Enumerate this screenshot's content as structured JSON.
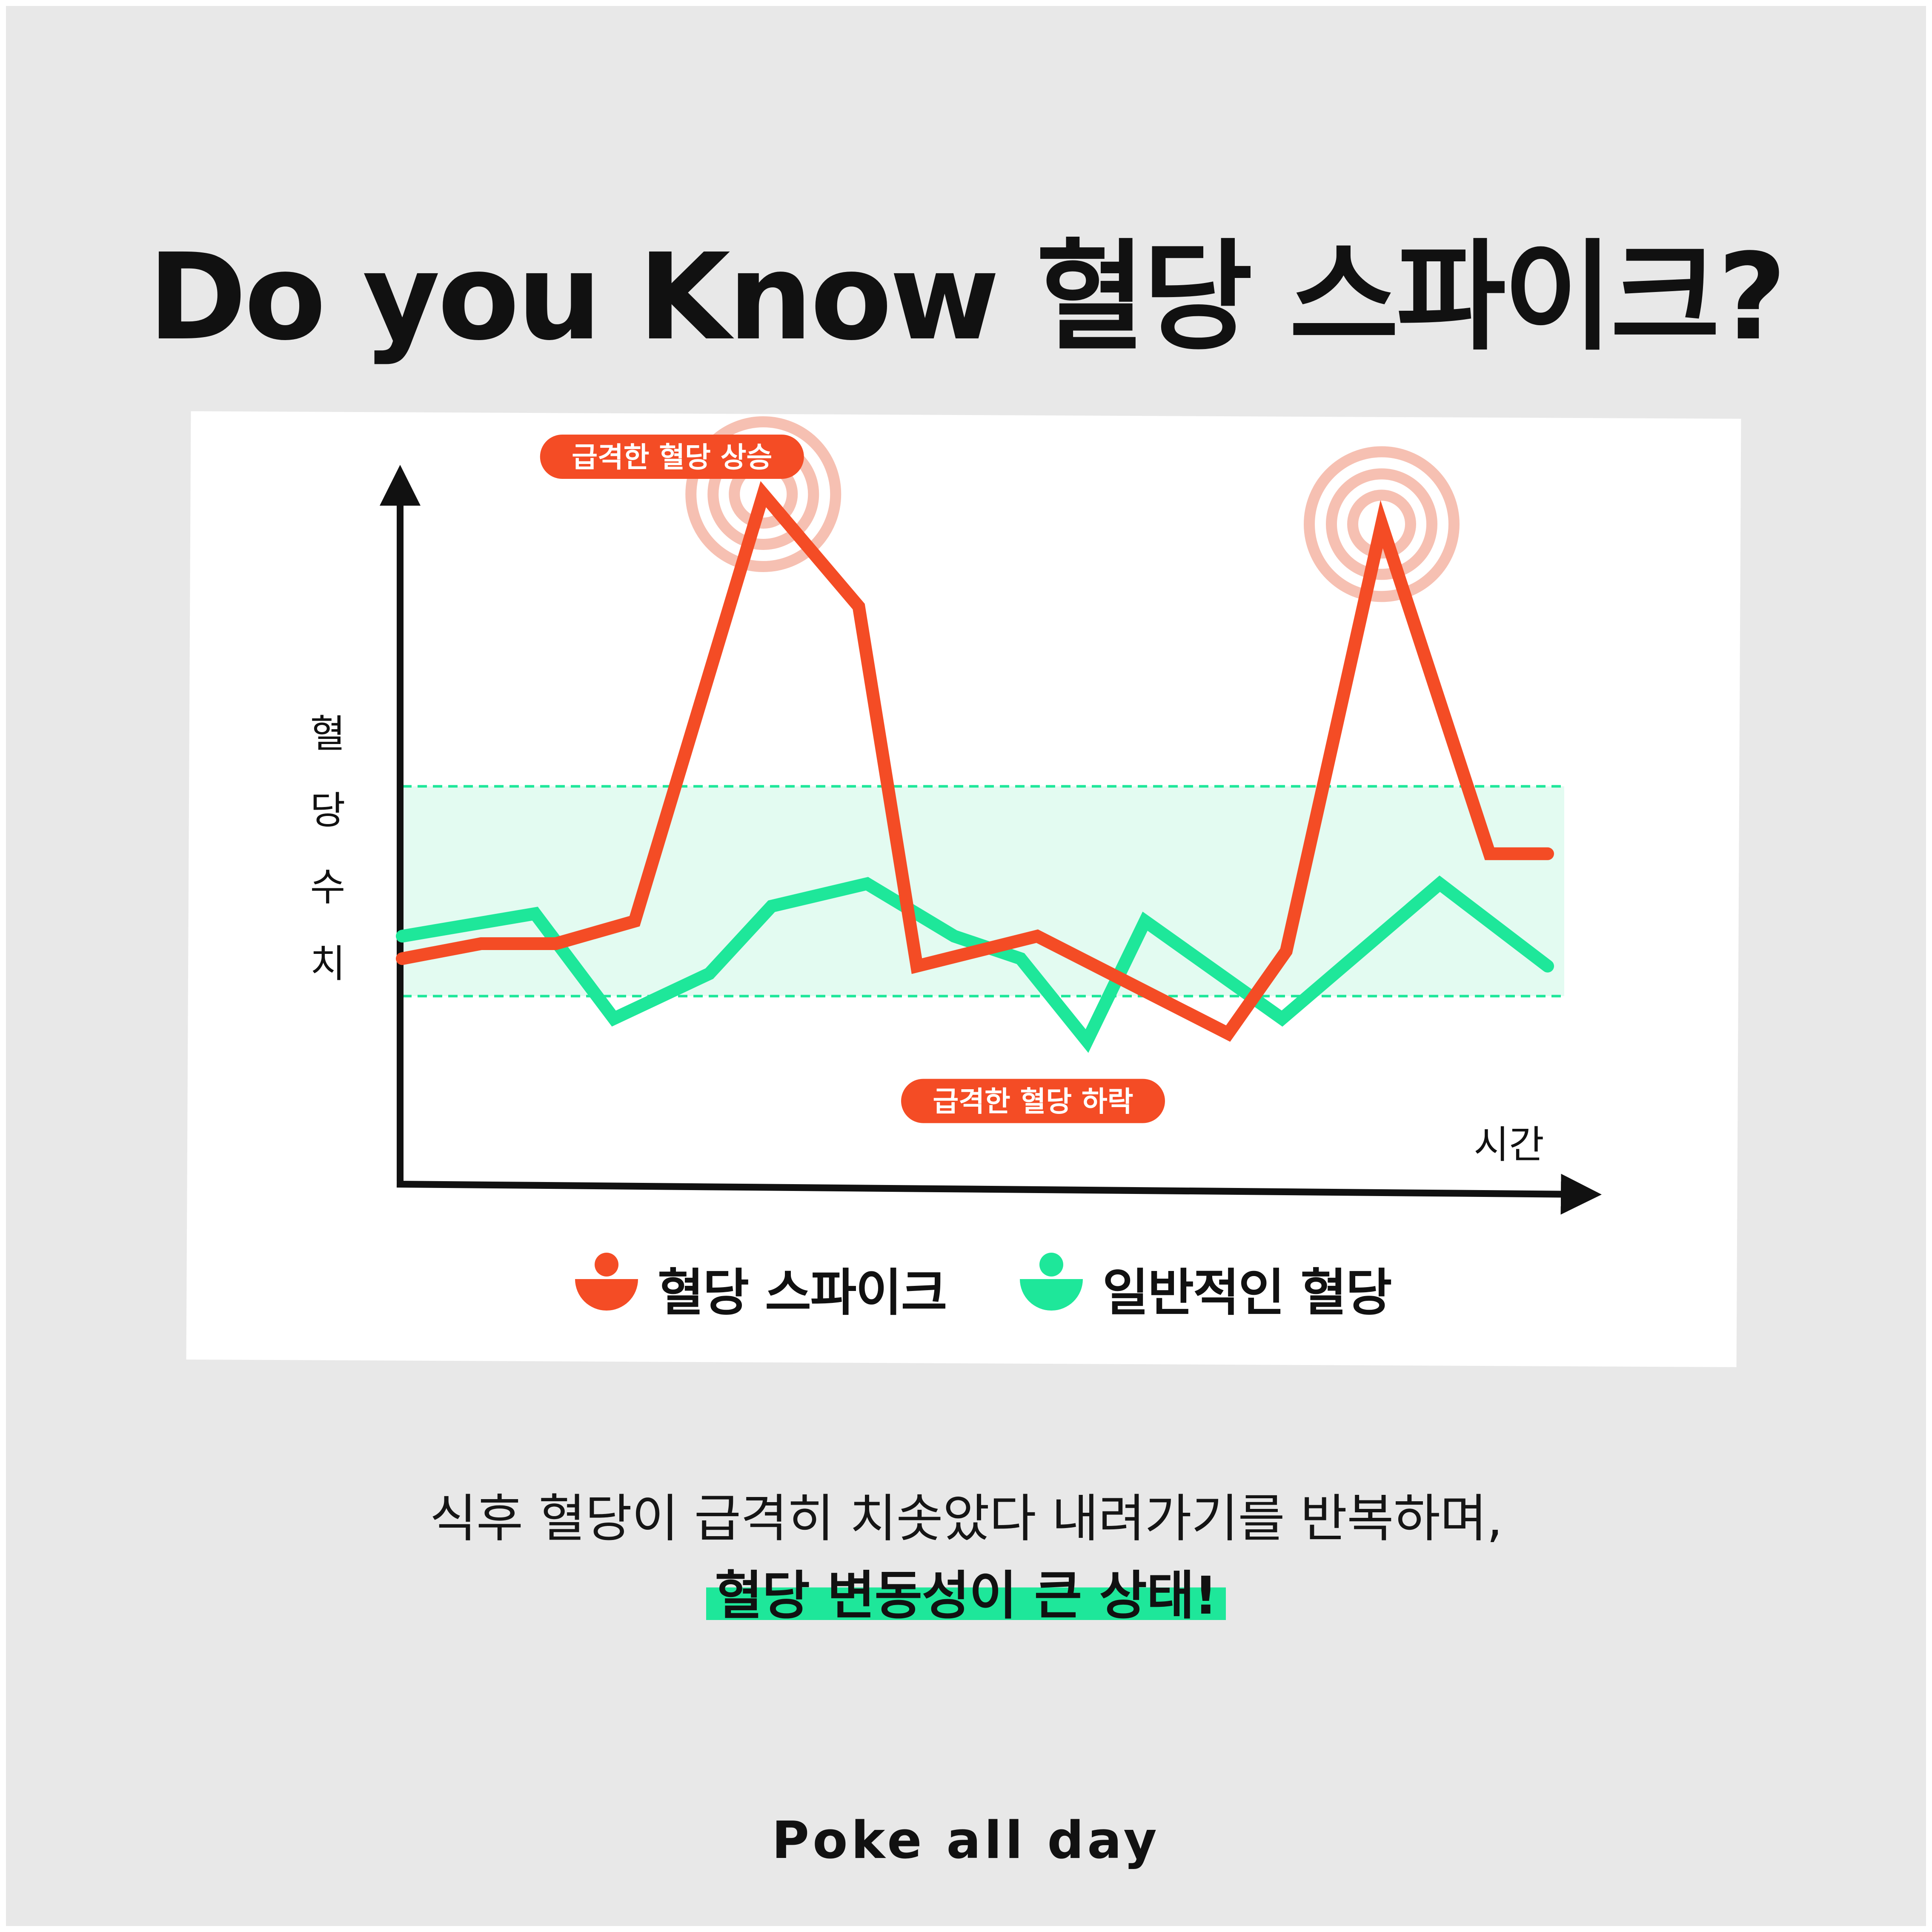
{
  "header": {
    "title": "Do you Know 혈당 스파이크?"
  },
  "colors": {
    "spike": "#f44c25",
    "normal": "#1ee79a",
    "band_fill": "#e3fbf1",
    "band_line": "#1ee79a",
    "ripple": "#f6c0b2",
    "background": "#e8e8e8",
    "panel": "#ffffff"
  },
  "chart_data": {
    "type": "line",
    "xlabel": "시간",
    "ylabel": "혈당 수치",
    "ylim": [
      0,
      100
    ],
    "normal_range": [
      23,
      51
    ],
    "x": [
      0,
      1,
      2,
      3,
      4,
      5,
      6,
      7,
      8,
      9,
      10,
      11,
      12,
      13,
      14,
      15,
      16,
      17,
      18,
      19,
      20,
      21,
      22,
      23,
      24,
      25,
      26,
      27,
      28
    ],
    "series": [
      {
        "name": "혈당 스파이크",
        "icon": "spike-bowl-icon",
        "points": [
          [
            0,
            28
          ],
          [
            1.9,
            30
          ],
          [
            3.7,
            30
          ],
          [
            5.6,
            33
          ],
          [
            8.7,
            90
          ],
          [
            11.0,
            75
          ],
          [
            12.4,
            27
          ],
          [
            15.3,
            31
          ],
          [
            19.9,
            18
          ],
          [
            21.3,
            29
          ],
          [
            23.6,
            86
          ],
          [
            26.2,
            42
          ],
          [
            27.6,
            42
          ]
        ]
      },
      {
        "name": "일반적인 혈당",
        "icon": "normal-bowl-icon",
        "points": [
          [
            0,
            31
          ],
          [
            3.2,
            34
          ],
          [
            5.1,
            20
          ],
          [
            7.4,
            26
          ],
          [
            8.9,
            35
          ],
          [
            11.2,
            38
          ],
          [
            13.3,
            31
          ],
          [
            14.9,
            28
          ],
          [
            16.5,
            17
          ],
          [
            17.9,
            33
          ],
          [
            21.2,
            20
          ],
          [
            25.0,
            38
          ],
          [
            27.6,
            27
          ]
        ]
      }
    ],
    "peaks": [
      [
        8.7,
        90
      ],
      [
        23.6,
        86
      ]
    ],
    "annotations": [
      {
        "text": "급격한 혈당 상승",
        "x": 6.5,
        "y": 95
      },
      {
        "text": "급격한 혈당 하락",
        "x": 15.2,
        "y": 9
      }
    ]
  },
  "legend": [
    {
      "label": "혈당 스파이크",
      "icon": "spike-bowl-icon"
    },
    {
      "label": "일반적인 혈당",
      "icon": "normal-bowl-icon"
    }
  ],
  "caption": {
    "line1": "식후 혈당이 급격히 치솟았다 내려가기를 반복하며,",
    "line2": "혈당 변동성이 큰 상태!"
  },
  "brand": "Poke all day"
}
